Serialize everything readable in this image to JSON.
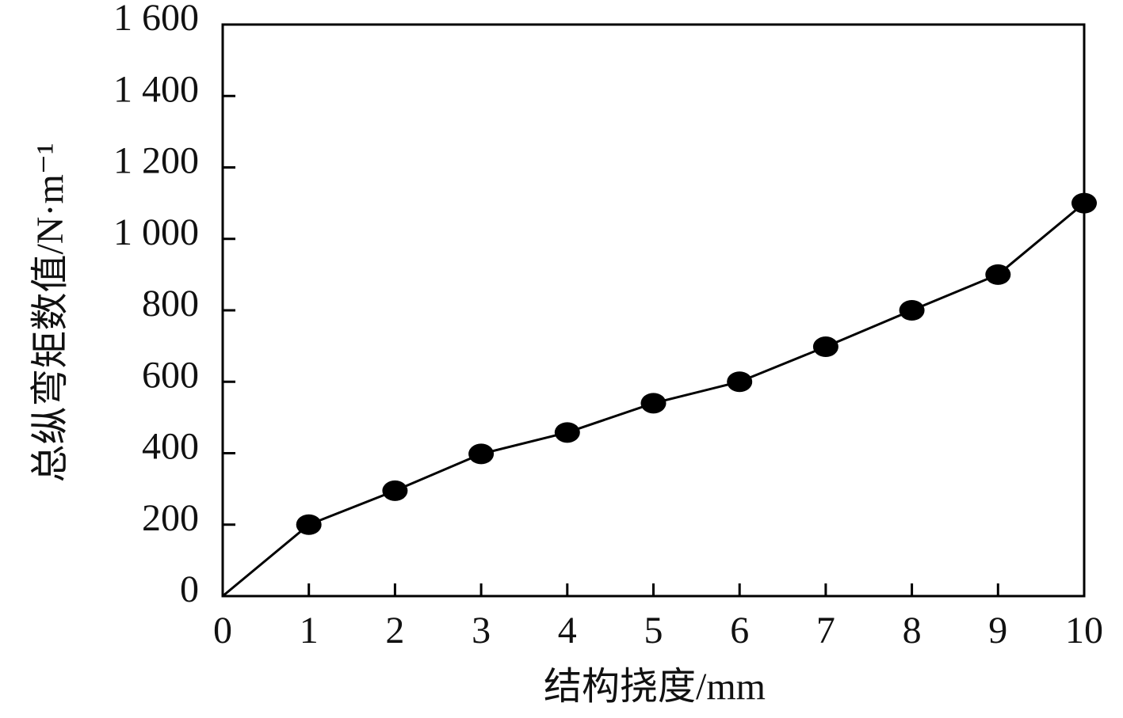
{
  "chart_data": {
    "type": "line",
    "x_label": "结构挠度/mm",
    "y_label": "总纵弯矩数值/N·m⁻¹",
    "x": [
      0,
      1,
      2,
      3,
      4,
      5,
      6,
      7,
      8,
      9,
      10
    ],
    "series": [
      {
        "color": "#000000",
        "values": [
          0,
          200,
          295,
          398,
          458,
          540,
          600,
          698,
          800,
          900,
          1100
        ]
      }
    ],
    "xlim": [
      0,
      10
    ],
    "xticks": [
      0,
      1,
      2,
      3,
      4,
      5,
      6,
      7,
      8,
      9,
      10
    ],
    "ylim": [
      0,
      1600
    ],
    "yticks": [
      0,
      200,
      400,
      600,
      800,
      {
        "value": 1000,
        "label": "1 000"
      },
      {
        "value": 1200,
        "label": "1 200"
      },
      {
        "value": 1400,
        "label": "1 400"
      },
      {
        "value": 1600,
        "label": "1 600"
      }
    ],
    "grid": false
  }
}
